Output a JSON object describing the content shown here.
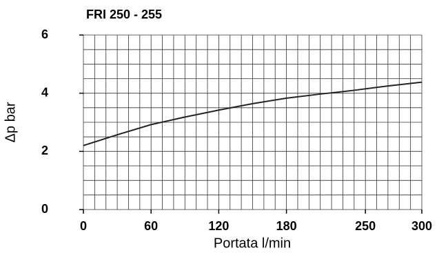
{
  "chart_data": {
    "type": "line",
    "title": "FRI 250 - 255",
    "x_label": "Portata l/min",
    "y_label": "Δp bar",
    "x": [
      0,
      30,
      60,
      90,
      120,
      150,
      180,
      210,
      240,
      270,
      300
    ],
    "series": [
      {
        "name": "FRI 250 - 255",
        "color": "#222222",
        "values": [
          2.2,
          2.57,
          2.92,
          3.18,
          3.42,
          3.64,
          3.83,
          3.97,
          4.1,
          4.25,
          4.38
        ]
      }
    ],
    "xlim": [
      0,
      300
    ],
    "xticks": [
      0,
      60,
      120,
      180,
      250,
      300
    ],
    "ylim": [
      0,
      6
    ],
    "yticks": [
      0,
      2,
      4,
      6
    ],
    "grid": true
  }
}
